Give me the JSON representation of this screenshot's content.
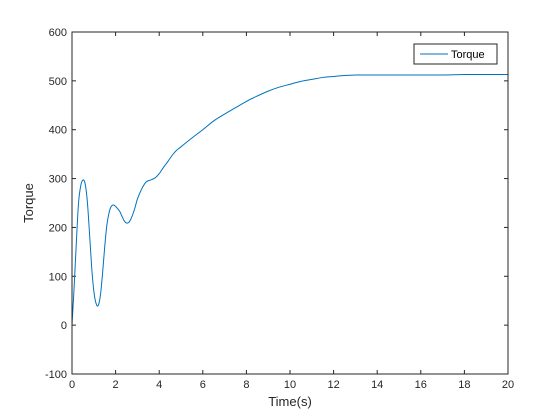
{
  "chart_data": {
    "type": "line",
    "title": "",
    "xlabel": "Time(s)",
    "ylabel": "Torque",
    "xlim": [
      0,
      20
    ],
    "ylim": [
      -100,
      600
    ],
    "xticks": [
      0,
      2,
      4,
      6,
      8,
      10,
      12,
      14,
      16,
      18,
      20
    ],
    "yticks": [
      -100,
      0,
      100,
      200,
      300,
      400,
      500,
      600
    ],
    "grid": false,
    "legend_position": "top-right",
    "series": [
      {
        "name": "Torque",
        "color": "#0072bd",
        "x": [
          0,
          0.1,
          0.2,
          0.3,
          0.4,
          0.5,
          0.6,
          0.7,
          0.8,
          0.9,
          1.0,
          1.1,
          1.2,
          1.3,
          1.4,
          1.5,
          1.6,
          1.7,
          1.8,
          1.9,
          2.0,
          2.1,
          2.2,
          2.3,
          2.4,
          2.5,
          2.6,
          2.7,
          2.8,
          2.9,
          3.0,
          3.2,
          3.4,
          3.6,
          3.8,
          4.0,
          4.2,
          4.4,
          4.6,
          4.8,
          5.0,
          5.5,
          6.0,
          6.5,
          7.0,
          7.5,
          8.0,
          8.5,
          9.0,
          9.5,
          10.0,
          10.5,
          11.0,
          11.5,
          12.0,
          12.5,
          13.0,
          13.5,
          14.0,
          15.0,
          16.0,
          17.0,
          18.0,
          19.0,
          20.0
        ],
        "y": [
          0,
          80,
          170,
          250,
          285,
          297,
          290,
          255,
          190,
          120,
          70,
          45,
          40,
          60,
          105,
          160,
          205,
          230,
          243,
          246,
          243,
          238,
          232,
          222,
          213,
          209,
          210,
          217,
          228,
          242,
          258,
          279,
          293,
          297,
          301,
          310,
          323,
          335,
          348,
          358,
          365,
          383,
          400,
          418,
          432,
          445,
          458,
          469,
          479,
          487,
          493,
          499,
          503,
          507,
          509,
          511,
          512,
          512,
          512,
          512,
          512,
          512,
          513,
          513,
          513
        ]
      }
    ]
  }
}
